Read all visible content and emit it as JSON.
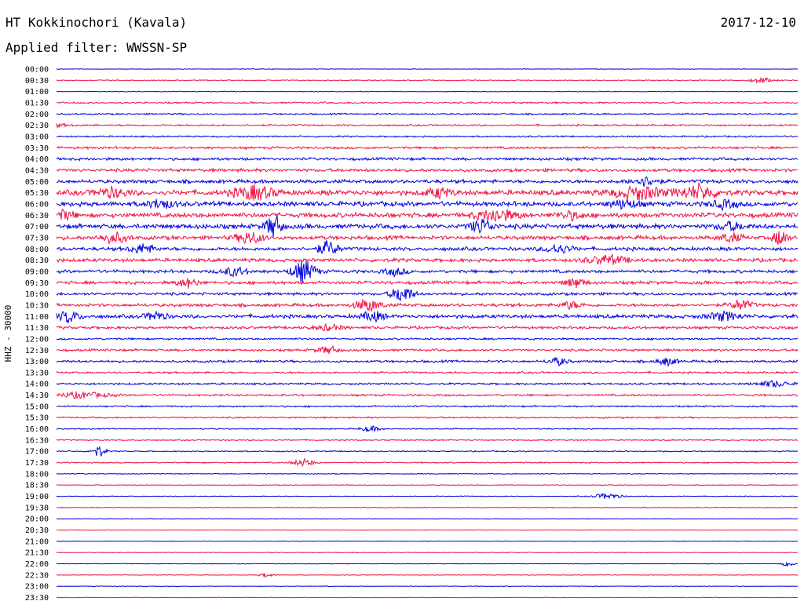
{
  "header": {
    "station": "HT Kokkinochori (Kavala)",
    "date": "2017-12-10",
    "filter": "Applied filter: WWSSN-SP"
  },
  "colors": {
    "even_trace": "#0000dd",
    "odd_trace": "#ee1144",
    "text": "#000000"
  },
  "chart_data": {
    "type": "line",
    "subtype": "helicorder",
    "ylabel": "HHZ - 30000",
    "rows": [
      "00:00",
      "00:30",
      "01:00",
      "01:30",
      "02:00",
      "02:30",
      "03:00",
      "03:30",
      "04:00",
      "04:30",
      "05:00",
      "05:30",
      "06:00",
      "06:30",
      "07:00",
      "07:30",
      "08:00",
      "08:30",
      "09:00",
      "09:30",
      "10:00",
      "10:30",
      "11:00",
      "11:30",
      "12:00",
      "12:30",
      "13:00",
      "13:30",
      "14:00",
      "14:30",
      "15:00",
      "15:30",
      "16:00",
      "16:30",
      "17:00",
      "17:30",
      "18:00",
      "18:30",
      "19:00",
      "19:30",
      "20:00",
      "20:30",
      "21:00",
      "21:30",
      "22:00",
      "22:30",
      "23:00",
      "23:30"
    ],
    "row_noise": [
      0.3,
      0.5,
      0.4,
      0.9,
      0.8,
      0.9,
      0.8,
      1.2,
      1.4,
      1.6,
      1.8,
      2.6,
      2.4,
      2.4,
      2.4,
      2.0,
      1.8,
      1.8,
      1.6,
      1.6,
      1.4,
      1.6,
      1.8,
      1.4,
      1.0,
      1.2,
      1.2,
      1.0,
      1.0,
      1.0,
      0.8,
      0.8,
      0.6,
      0.6,
      0.6,
      0.6,
      0.4,
      0.4,
      0.4,
      0.4,
      0.3,
      0.3,
      0.3,
      0.3,
      0.3,
      0.3,
      0.3,
      0.3
    ],
    "bursts": [
      {
        "row": 1,
        "minute": 28.5,
        "amp": 4,
        "dur": 0.8
      },
      {
        "row": 5,
        "minute": 0.0,
        "amp": 2,
        "dur": 1.0
      },
      {
        "row": 10,
        "minute": 23.8,
        "amp": 6,
        "dur": 1.0
      },
      {
        "row": 11,
        "minute": 2.2,
        "amp": 6,
        "dur": 1.2
      },
      {
        "row": 11,
        "minute": 8.0,
        "amp": 9,
        "dur": 1.5
      },
      {
        "row": 11,
        "minute": 15.5,
        "amp": 6,
        "dur": 1.0
      },
      {
        "row": 11,
        "minute": 23.6,
        "amp": 8,
        "dur": 2.0
      },
      {
        "row": 11,
        "minute": 26.0,
        "amp": 9,
        "dur": 1.4
      },
      {
        "row": 12,
        "minute": 4.2,
        "amp": 6,
        "dur": 1.0
      },
      {
        "row": 12,
        "minute": 23.0,
        "amp": 6,
        "dur": 1.0
      },
      {
        "row": 12,
        "minute": 27.0,
        "amp": 5,
        "dur": 1.0
      },
      {
        "row": 13,
        "minute": 0.3,
        "amp": 6,
        "dur": 0.8
      },
      {
        "row": 13,
        "minute": 17.8,
        "amp": 8,
        "dur": 1.5
      },
      {
        "row": 13,
        "minute": 20.8,
        "amp": 5,
        "dur": 1.0
      },
      {
        "row": 14,
        "minute": 8.8,
        "amp": 16,
        "dur": 0.6
      },
      {
        "row": 14,
        "minute": 17.2,
        "amp": 10,
        "dur": 0.8
      },
      {
        "row": 14,
        "minute": 27.3,
        "amp": 5,
        "dur": 1.0
      },
      {
        "row": 15,
        "minute": 2.3,
        "amp": 7,
        "dur": 1.0
      },
      {
        "row": 15,
        "minute": 7.8,
        "amp": 8,
        "dur": 1.0
      },
      {
        "row": 15,
        "minute": 27.3,
        "amp": 6,
        "dur": 0.8
      },
      {
        "row": 15,
        "minute": 29.3,
        "amp": 12,
        "dur": 0.5
      },
      {
        "row": 16,
        "minute": 3.5,
        "amp": 6,
        "dur": 1.0
      },
      {
        "row": 16,
        "minute": 11.0,
        "amp": 10,
        "dur": 0.8
      },
      {
        "row": 16,
        "minute": 20.3,
        "amp": 6,
        "dur": 1.0
      },
      {
        "row": 17,
        "minute": 22.3,
        "amp": 6,
        "dur": 1.5
      },
      {
        "row": 18,
        "minute": 10.0,
        "amp": 15,
        "dur": 0.9
      },
      {
        "row": 18,
        "minute": 7.2,
        "amp": 6,
        "dur": 1.0
      },
      {
        "row": 18,
        "minute": 13.7,
        "amp": 5,
        "dur": 0.8
      },
      {
        "row": 19,
        "minute": 5.3,
        "amp": 6,
        "dur": 0.8
      },
      {
        "row": 19,
        "minute": 21.0,
        "amp": 6,
        "dur": 0.8
      },
      {
        "row": 20,
        "minute": 14.0,
        "amp": 12,
        "dur": 0.8
      },
      {
        "row": 21,
        "minute": 12.6,
        "amp": 8,
        "dur": 1.0
      },
      {
        "row": 21,
        "minute": 20.8,
        "amp": 5,
        "dur": 0.8
      },
      {
        "row": 21,
        "minute": 27.7,
        "amp": 7,
        "dur": 0.8
      },
      {
        "row": 22,
        "minute": 0.5,
        "amp": 8,
        "dur": 0.8
      },
      {
        "row": 22,
        "minute": 4.0,
        "amp": 6,
        "dur": 0.8
      },
      {
        "row": 22,
        "minute": 12.8,
        "amp": 7,
        "dur": 0.8
      },
      {
        "row": 22,
        "minute": 27.0,
        "amp": 6,
        "dur": 1.2
      },
      {
        "row": 23,
        "minute": 11.0,
        "amp": 4,
        "dur": 1.0
      },
      {
        "row": 25,
        "minute": 11.0,
        "amp": 5,
        "dur": 0.8
      },
      {
        "row": 26,
        "minute": 20.3,
        "amp": 5,
        "dur": 0.7
      },
      {
        "row": 26,
        "minute": 24.7,
        "amp": 5,
        "dur": 0.8
      },
      {
        "row": 28,
        "minute": 29.0,
        "amp": 4,
        "dur": 1.2
      },
      {
        "row": 29,
        "minute": 1.0,
        "amp": 4,
        "dur": 2.0
      },
      {
        "row": 32,
        "minute": 12.7,
        "amp": 4,
        "dur": 0.7
      },
      {
        "row": 34,
        "minute": 1.7,
        "amp": 8,
        "dur": 0.5
      },
      {
        "row": 35,
        "minute": 10.0,
        "amp": 5,
        "dur": 0.8
      },
      {
        "row": 38,
        "minute": 22.3,
        "amp": 4,
        "dur": 1.0
      },
      {
        "row": 44,
        "minute": 29.6,
        "amp": 4,
        "dur": 0.4
      },
      {
        "row": 45,
        "minute": 8.5,
        "amp": 3,
        "dur": 0.5
      }
    ]
  }
}
